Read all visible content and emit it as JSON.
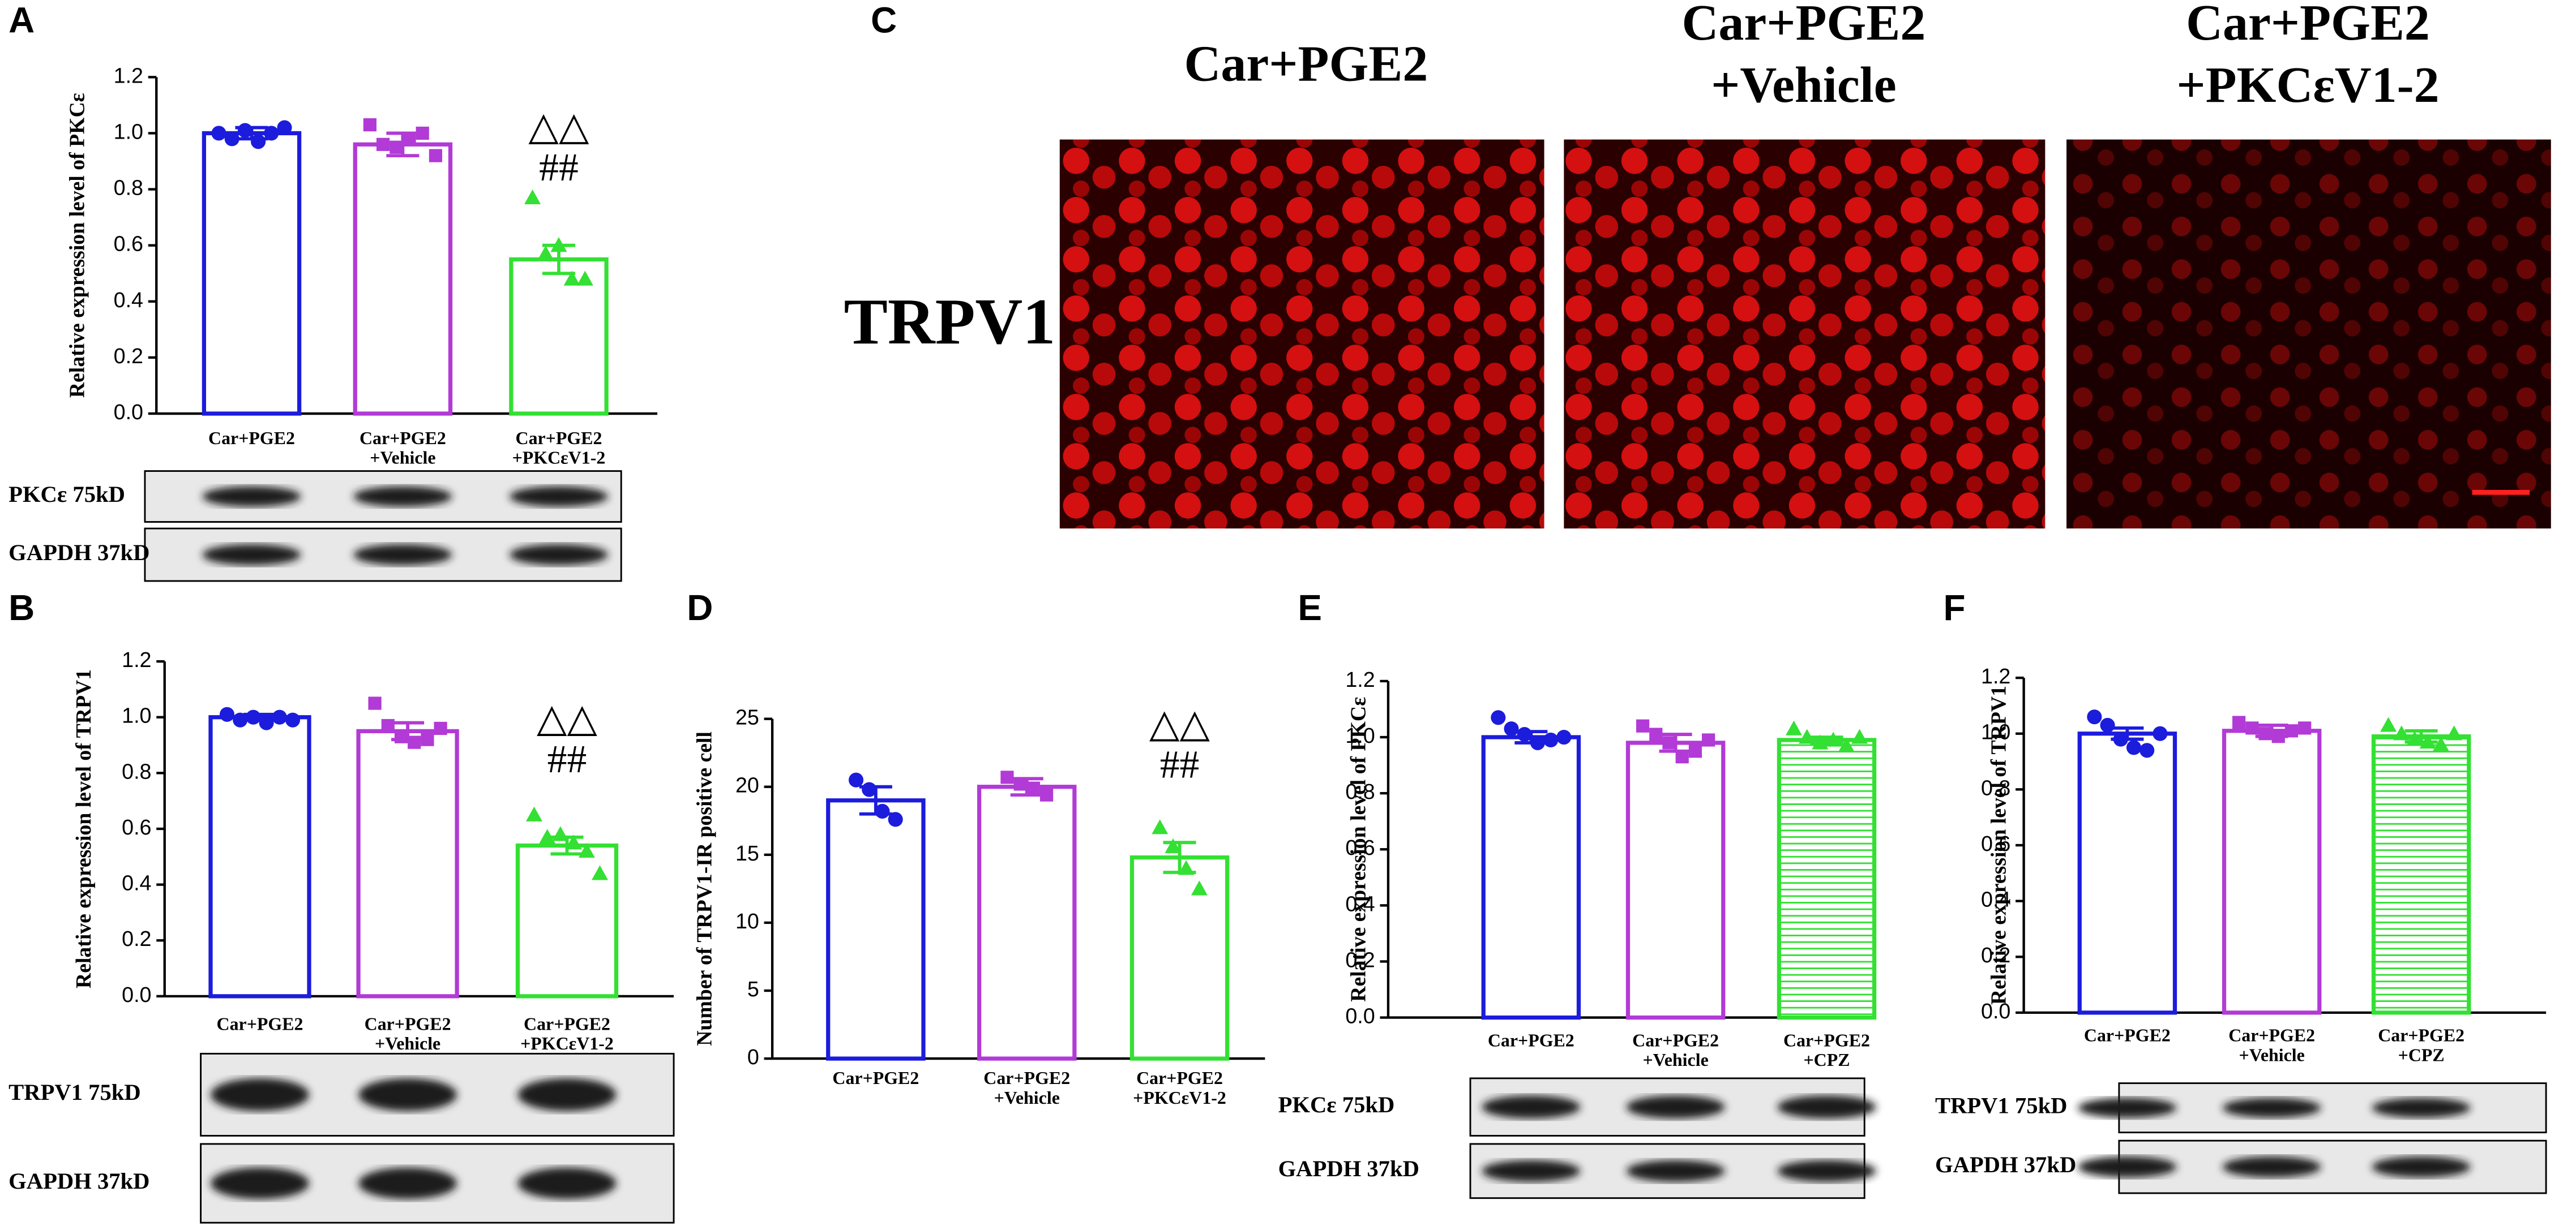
{
  "chart_data": [
    {
      "type": "bar",
      "panel_label": "A",
      "y_label": "Relative expression level of PKCε",
      "categories": [
        [
          "Car+PGE2"
        ],
        [
          "Car+PGE2",
          "+Vehicle"
        ],
        [
          "Car+PGE2",
          "+PKCεV1-2"
        ]
      ],
      "values": [
        1.0,
        0.96,
        0.55
      ],
      "errors": [
        0.02,
        0.04,
        0.05
      ],
      "points": [
        [
          1.0,
          0.98,
          1.01,
          0.97,
          1.0,
          1.02
        ],
        [
          1.03,
          0.96,
          0.95,
          0.98,
          1.0,
          0.92
        ],
        [
          0.77,
          0.57,
          0.6,
          0.48,
          0.48
        ]
      ],
      "colors": [
        "#1c1cdc",
        "#b23ad6",
        "#33e033"
      ],
      "markers": [
        "circle",
        "square",
        "triangle"
      ],
      "hatch": [
        false,
        false,
        false
      ],
      "annotations": [
        null,
        null,
        [
          "△△",
          "##"
        ]
      ],
      "ylim": [
        0,
        1.2
      ],
      "yticks": [
        {
          "value": 0,
          "label": "0.0"
        },
        0.2,
        0.4,
        0.6,
        0.8,
        {
          "value": 1,
          "label": "1.0"
        },
        1.2
      ],
      "blot_labels": [
        "PKCε 75kD",
        "GAPDH 37kD"
      ]
    },
    {
      "type": "bar",
      "panel_label": "B",
      "y_label": "Relative expression level of TRPV1",
      "categories": [
        [
          "Car+PGE2"
        ],
        [
          "Car+PGE2",
          "+Vehicle"
        ],
        [
          "Car+PGE2",
          "+PKCεV1-2"
        ]
      ],
      "values": [
        1.0,
        0.95,
        0.54
      ],
      "errors": [
        0.01,
        0.03,
        0.03
      ],
      "points": [
        [
          1.01,
          0.99,
          1.0,
          0.98,
          1.0,
          0.99
        ],
        [
          1.05,
          0.97,
          0.93,
          0.91,
          0.92,
          0.96
        ],
        [
          0.65,
          0.57,
          0.58,
          0.55,
          0.52,
          0.44
        ]
      ],
      "colors": [
        "#1c1cdc",
        "#b23ad6",
        "#33e033"
      ],
      "markers": [
        "circle",
        "square",
        "triangle"
      ],
      "hatch": [
        false,
        false,
        false
      ],
      "annotations": [
        null,
        null,
        [
          "△△",
          "##"
        ]
      ],
      "ylim": [
        0,
        1.2
      ],
      "yticks": [
        {
          "value": 0,
          "label": "0.0"
        },
        0.2,
        0.4,
        0.6,
        0.8,
        {
          "value": 1,
          "label": "1.0"
        },
        1.2
      ],
      "blot_labels": [
        "TRPV1 75kD",
        "GAPDH 37kD"
      ]
    },
    {
      "type": "bar",
      "panel_label": "D",
      "y_label": "Number of TRPV1-IR positive cell",
      "categories": [
        [
          "Car+PGE2"
        ],
        [
          "Car+PGE2",
          "+Vehicle"
        ],
        [
          "Car+PGE2",
          "+PKCεV1-2"
        ]
      ],
      "values": [
        19,
        20,
        14.8
      ],
      "errors": [
        1.0,
        0.6,
        1.1
      ],
      "points": [
        [
          20.5,
          19.8,
          18.2,
          17.6
        ],
        [
          20.7,
          20.2,
          19.9,
          19.4
        ],
        [
          17,
          15.6,
          14,
          12.5
        ]
      ],
      "colors": [
        "#1c1cdc",
        "#b23ad6",
        "#33e033"
      ],
      "markers": [
        "circle",
        "square",
        "triangle"
      ],
      "hatch": [
        false,
        false,
        false
      ],
      "annotations": [
        null,
        null,
        [
          "△△",
          "##"
        ]
      ],
      "ylim": [
        0,
        25
      ],
      "yticks": [
        0,
        5,
        10,
        15,
        20,
        25
      ],
      "blot_labels": []
    },
    {
      "type": "bar",
      "panel_label": "E",
      "y_label": "Relative expression level of PKCε",
      "categories": [
        [
          "Car+PGE2"
        ],
        [
          "Car+PGE2",
          "+Vehicle"
        ],
        [
          "Car+PGE2",
          "+CPZ"
        ]
      ],
      "values": [
        1.0,
        0.98,
        0.99
      ],
      "errors": [
        0.02,
        0.03,
        0.01
      ],
      "points": [
        [
          1.07,
          1.03,
          1.01,
          0.98,
          0.99,
          1.0
        ],
        [
          1.04,
          1.01,
          0.98,
          0.93,
          0.95,
          0.99
        ],
        [
          1.03,
          1.0,
          0.98,
          0.99,
          0.97,
          1.0
        ]
      ],
      "colors": [
        "#1c1cdc",
        "#b23ad6",
        "#33e033"
      ],
      "markers": [
        "circle",
        "square",
        "triangle"
      ],
      "hatch": [
        false,
        false,
        true
      ],
      "annotations": [
        null,
        null,
        null
      ],
      "ylim": [
        0,
        1.2
      ],
      "yticks": [
        {
          "value": 0,
          "label": "0.0"
        },
        0.2,
        0.4,
        0.6,
        0.8,
        {
          "value": 1,
          "label": "1.0"
        },
        1.2
      ],
      "blot_labels": [
        "PKCε 75kD",
        "GAPDH 37kD"
      ]
    },
    {
      "type": "bar",
      "panel_label": "F",
      "y_label": "Relative expression level of TRPV1",
      "categories": [
        [
          "Car+PGE2"
        ],
        [
          "Car+PGE2",
          "+Vehicle"
        ],
        [
          "Car+PGE2",
          "+CPZ"
        ]
      ],
      "values": [
        1.0,
        1.01,
        0.99
      ],
      "errors": [
        0.02,
        0.02,
        0.02
      ],
      "points": [
        [
          1.06,
          1.03,
          0.98,
          0.95,
          0.94,
          1.0
        ],
        [
          1.04,
          1.02,
          1.0,
          0.99,
          1.01,
          1.02
        ],
        [
          1.03,
          1.0,
          0.98,
          0.97,
          0.96,
          1.0
        ]
      ],
      "colors": [
        "#1c1cdc",
        "#b23ad6",
        "#33e033"
      ],
      "markers": [
        "circle",
        "square",
        "triangle"
      ],
      "hatch": [
        false,
        false,
        true
      ],
      "annotations": [
        null,
        null,
        null
      ],
      "ylim": [
        0,
        1.2
      ],
      "yticks": [
        {
          "value": 0,
          "label": "0.0"
        },
        0.2,
        0.4,
        0.6,
        0.8,
        {
          "value": 1,
          "label": "1.0"
        },
        1.2
      ],
      "blot_labels": [
        "TRPV1 75kD",
        "GAPDH 37kD"
      ]
    }
  ],
  "image_panel": {
    "panel_label": "C",
    "row_label": "TRPV1",
    "titles": [
      [
        "Car+PGE2"
      ],
      [
        "Car+PGE2",
        "+Vehicle"
      ],
      [
        "Car+PGE2",
        "+PKCεV1-2"
      ]
    ]
  }
}
